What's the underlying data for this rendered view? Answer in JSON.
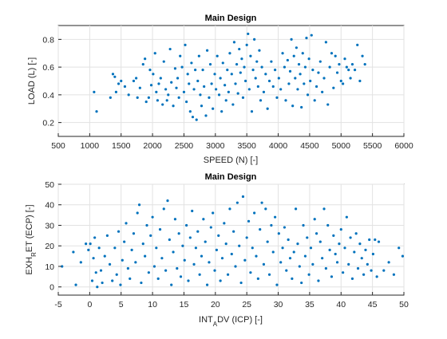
{
  "chart_data": [
    {
      "type": "scatter",
      "title": "Main Design",
      "xlabel": "SPEED (N) [-]",
      "ylabel": "LOAD (L) [-]",
      "xlim": [
        500,
        6000
      ],
      "ylim": [
        0.1,
        0.9
      ],
      "xticks": [
        "500",
        "1000",
        "1500",
        "2000",
        "2500",
        "3000",
        "3500",
        "4000",
        "4500",
        "5000",
        "5500",
        "6000"
      ],
      "yticks": [
        "0.2",
        "0.4",
        "0.6",
        "0.8"
      ],
      "grid": true,
      "color": "#0072BD",
      "points": [
        [
          1070,
          0.42
        ],
        [
          1110,
          0.28
        ],
        [
          1330,
          0.38
        ],
        [
          1370,
          0.55
        ],
        [
          1400,
          0.53
        ],
        [
          1420,
          0.42
        ],
        [
          1460,
          0.48
        ],
        [
          1500,
          0.5
        ],
        [
          1560,
          0.46
        ],
        [
          1620,
          0.4
        ],
        [
          1700,
          0.5
        ],
        [
          1740,
          0.52
        ],
        [
          1760,
          0.38
        ],
        [
          1800,
          0.45
        ],
        [
          1850,
          0.62
        ],
        [
          1880,
          0.66
        ],
        [
          1900,
          0.35
        ],
        [
          1940,
          0.38
        ],
        [
          1960,
          0.58
        ],
        [
          1980,
          0.47
        ],
        [
          2010,
          0.55
        ],
        [
          2040,
          0.7
        ],
        [
          2060,
          0.42
        ],
        [
          2080,
          0.36
        ],
        [
          2100,
          0.48
        ],
        [
          2130,
          0.52
        ],
        [
          2160,
          0.33
        ],
        [
          2180,
          0.64
        ],
        [
          2210,
          0.44
        ],
        [
          2230,
          0.36
        ],
        [
          2250,
          0.4
        ],
        [
          2280,
          0.73
        ],
        [
          2300,
          0.49
        ],
        [
          2330,
          0.32
        ],
        [
          2360,
          0.59
        ],
        [
          2380,
          0.45
        ],
        [
          2400,
          0.52
        ],
        [
          2420,
          0.38
        ],
        [
          2440,
          0.68
        ],
        [
          2470,
          0.6
        ],
        [
          2500,
          0.42
        ],
        [
          2520,
          0.76
        ],
        [
          2540,
          0.35
        ],
        [
          2560,
          0.55
        ],
        [
          2580,
          0.48
        ],
        [
          2600,
          0.28
        ],
        [
          2620,
          0.63
        ],
        [
          2640,
          0.24
        ],
        [
          2660,
          0.44
        ],
        [
          2680,
          0.58
        ],
        [
          2700,
          0.22
        ],
        [
          2720,
          0.5
        ],
        [
          2740,
          0.68
        ],
        [
          2760,
          0.4
        ],
        [
          2780,
          0.32
        ],
        [
          2800,
          0.58
        ],
        [
          2820,
          0.46
        ],
        [
          2850,
          0.25
        ],
        [
          2870,
          0.72
        ],
        [
          2900,
          0.38
        ],
        [
          2920,
          0.62
        ],
        [
          2940,
          0.48
        ],
        [
          2960,
          0.3
        ],
        [
          2990,
          0.55
        ],
        [
          3010,
          0.44
        ],
        [
          3030,
          0.68
        ],
        [
          3060,
          0.4
        ],
        [
          3080,
          0.52
        ],
        [
          3100,
          0.28
        ],
        [
          3120,
          0.63
        ],
        [
          3150,
          0.47
        ],
        [
          3170,
          0.36
        ],
        [
          3190,
          0.58
        ],
        [
          3210,
          0.42
        ],
        [
          3230,
          0.7
        ],
        [
          3260,
          0.55
        ],
        [
          3280,
          0.33
        ],
        [
          3300,
          0.78
        ],
        [
          3320,
          0.48
        ],
        [
          3340,
          0.62
        ],
        [
          3360,
          0.41
        ],
        [
          3380,
          0.73
        ],
        [
          3400,
          0.56
        ],
        [
          3420,
          0.66
        ],
        [
          3440,
          0.38
        ],
        [
          3460,
          0.6
        ],
        [
          3480,
          0.5
        ],
        [
          3500,
          0.76
        ],
        [
          3520,
          0.84
        ],
        [
          3540,
          0.44
        ],
        [
          3560,
          0.68
        ],
        [
          3580,
          0.28
        ],
        [
          3600,
          0.58
        ],
        [
          3620,
          0.8
        ],
        [
          3640,
          0.52
        ],
        [
          3660,
          0.64
        ],
        [
          3680,
          0.46
        ],
        [
          3700,
          0.72
        ],
        [
          3720,
          0.36
        ],
        [
          3740,
          0.6
        ],
        [
          3770,
          0.42
        ],
        [
          3800,
          0.55
        ],
        [
          3830,
          0.3
        ],
        [
          3860,
          0.5
        ],
        [
          3890,
          0.64
        ],
        [
          3920,
          0.46
        ],
        [
          3950,
          0.58
        ],
        [
          3980,
          0.38
        ],
        [
          4010,
          0.52
        ],
        [
          4040,
          0.44
        ],
        [
          4070,
          0.7
        ],
        [
          4100,
          0.6
        ],
        [
          4120,
          0.36
        ],
        [
          4150,
          0.65
        ],
        [
          4170,
          0.48
        ],
        [
          4190,
          0.57
        ],
        [
          4210,
          0.8
        ],
        [
          4230,
          0.32
        ],
        [
          4250,
          0.68
        ],
        [
          4270,
          0.52
        ],
        [
          4290,
          0.74
        ],
        [
          4310,
          0.44
        ],
        [
          4330,
          0.62
        ],
        [
          4350,
          0.55
        ],
        [
          4370,
          0.31
        ],
        [
          4390,
          0.7
        ],
        [
          4410,
          0.48
        ],
        [
          4430,
          0.6
        ],
        [
          4450,
          0.81
        ],
        [
          4470,
          0.4
        ],
        [
          4490,
          0.66
        ],
        [
          4510,
          0.5
        ],
        [
          4530,
          0.83
        ],
        [
          4550,
          0.58
        ],
        [
          4580,
          0.36
        ],
        [
          4610,
          0.46
        ],
        [
          4640,
          0.56
        ],
        [
          4670,
          0.64
        ],
        [
          4700,
          0.42
        ],
        [
          4730,
          0.52
        ],
        [
          4760,
          0.78
        ],
        [
          4790,
          0.33
        ],
        [
          4820,
          0.6
        ],
        [
          4850,
          0.7
        ],
        [
          4880,
          0.45
        ],
        [
          4910,
          0.68
        ],
        [
          4940,
          0.56
        ],
        [
          4970,
          0.62
        ],
        [
          5000,
          0.5
        ],
        [
          5030,
          0.48
        ],
        [
          5060,
          0.66
        ],
        [
          5090,
          0.6
        ],
        [
          5120,
          0.58
        ],
        [
          5150,
          0.52
        ],
        [
          5180,
          0.62
        ],
        [
          5220,
          0.58
        ],
        [
          5260,
          0.76
        ],
        [
          5300,
          0.5
        ],
        [
          5340,
          0.68
        ],
        [
          5380,
          0.62
        ]
      ]
    },
    {
      "type": "scatter",
      "title": "Main Design",
      "xlabel": "INT_ADV (ICP) [-]",
      "ylabel": "EXH_RET (ECP) [-]",
      "xlim": [
        -5,
        50
      ],
      "ylim": [
        -4,
        50
      ],
      "xticks": [
        "-5",
        "0",
        "5",
        "10",
        "15",
        "20",
        "25",
        "30",
        "35",
        "40",
        "45",
        "50"
      ],
      "yticks": [
        "0",
        "10",
        "20",
        "30",
        "40",
        "50"
      ],
      "grid": true,
      "color": "#0072BD",
      "points": [
        [
          -4.4,
          10
        ],
        [
          -2.6,
          17
        ],
        [
          -2.2,
          1
        ],
        [
          -1.4,
          12
        ],
        [
          -0.6,
          21
        ],
        [
          -0.2,
          18
        ],
        [
          0.1,
          21
        ],
        [
          0.4,
          3
        ],
        [
          0.6,
          14
        ],
        [
          0.8,
          24
        ],
        [
          1.0,
          7
        ],
        [
          1.2,
          0
        ],
        [
          1.5,
          19
        ],
        [
          1.8,
          8
        ],
        [
          2.0,
          2
        ],
        [
          2.4,
          15
        ],
        [
          2.8,
          25
        ],
        [
          3.2,
          11
        ],
        [
          3.6,
          3
        ],
        [
          4.0,
          19
        ],
        [
          4.3,
          6
        ],
        [
          4.6,
          27
        ],
        [
          4.9,
          1
        ],
        [
          5.2,
          13
        ],
        [
          5.5,
          22
        ],
        [
          5.8,
          31
        ],
        [
          6.1,
          9
        ],
        [
          6.4,
          4
        ],
        [
          6.7,
          18
        ],
        [
          7.0,
          26
        ],
        [
          7.3,
          12
        ],
        [
          7.6,
          36
        ],
        [
          7.9,
          40
        ],
        [
          8.2,
          2
        ],
        [
          8.5,
          21
        ],
        [
          8.8,
          15
        ],
        [
          9.1,
          30
        ],
        [
          9.4,
          7
        ],
        [
          9.7,
          25
        ],
        [
          10.0,
          34
        ],
        [
          10.3,
          10
        ],
        [
          10.6,
          19
        ],
        [
          10.9,
          4
        ],
        [
          11.2,
          28
        ],
        [
          11.5,
          14
        ],
        [
          11.8,
          38
        ],
        [
          12.1,
          8
        ],
        [
          12.4,
          42
        ],
        [
          12.7,
          23
        ],
        [
          13.0,
          1
        ],
        [
          13.3,
          17
        ],
        [
          13.6,
          33
        ],
        [
          13.9,
          9
        ],
        [
          14.2,
          26
        ],
        [
          14.5,
          5
        ],
        [
          14.8,
          20
        ],
        [
          15.1,
          13
        ],
        [
          15.4,
          30
        ],
        [
          15.7,
          3
        ],
        [
          16.0,
          24
        ],
        [
          16.3,
          37
        ],
        [
          16.6,
          11
        ],
        [
          16.9,
          19
        ],
        [
          17.2,
          27
        ],
        [
          17.5,
          6
        ],
        [
          17.8,
          15
        ],
        [
          18.1,
          33
        ],
        [
          18.4,
          22
        ],
        [
          18.7,
          1
        ],
        [
          19.0,
          12
        ],
        [
          19.3,
          29
        ],
        [
          19.6,
          36
        ],
        [
          19.9,
          8
        ],
        [
          20.2,
          18
        ],
        [
          20.5,
          25
        ],
        [
          20.8,
          3
        ],
        [
          21.1,
          14
        ],
        [
          21.4,
          31
        ],
        [
          21.7,
          21
        ],
        [
          22.0,
          6
        ],
        [
          22.3,
          38
        ],
        [
          22.6,
          16
        ],
        [
          22.9,
          27
        ],
        [
          23.2,
          10
        ],
        [
          23.5,
          41
        ],
        [
          23.8,
          20
        ],
        [
          24.1,
          2
        ],
        [
          24.4,
          44
        ],
        [
          24.7,
          13
        ],
        [
          25.0,
          24
        ],
        [
          25.3,
          32
        ],
        [
          25.6,
          7
        ],
        [
          25.9,
          19
        ],
        [
          26.2,
          36
        ],
        [
          26.5,
          15
        ],
        [
          26.8,
          4
        ],
        [
          27.1,
          28
        ],
        [
          27.4,
          41
        ],
        [
          27.7,
          11
        ],
        [
          28.0,
          38
        ],
        [
          28.3,
          22
        ],
        [
          28.6,
          6
        ],
        [
          28.9,
          30
        ],
        [
          29.2,
          17
        ],
        [
          29.5,
          34
        ],
        [
          29.8,
          1
        ],
        [
          30.1,
          26
        ],
        [
          30.4,
          12
        ],
        [
          30.7,
          19
        ],
        [
          31.0,
          29
        ],
        [
          31.3,
          8
        ],
        [
          31.6,
          23
        ],
        [
          31.9,
          14
        ],
        [
          32.2,
          4
        ],
        [
          32.5,
          17
        ],
        [
          32.8,
          38
        ],
        [
          33.1,
          21
        ],
        [
          33.4,
          10
        ],
        [
          33.7,
          2
        ],
        [
          34.0,
          30
        ],
        [
          34.3,
          15
        ],
        [
          34.6,
          24
        ],
        [
          34.9,
          6
        ],
        [
          35.2,
          19
        ],
        [
          35.5,
          11
        ],
        [
          35.8,
          33
        ],
        [
          36.1,
          26
        ],
        [
          36.4,
          3
        ],
        [
          36.7,
          22
        ],
        [
          37.0,
          14
        ],
        [
          37.3,
          38
        ],
        [
          37.6,
          9
        ],
        [
          37.9,
          30
        ],
        [
          38.2,
          18
        ],
        [
          38.5,
          5
        ],
        [
          38.8,
          25
        ],
        [
          39.1,
          16
        ],
        [
          39.4,
          12
        ],
        [
          39.7,
          21
        ],
        [
          40.0,
          28
        ],
        [
          40.3,
          7
        ],
        [
          40.6,
          19
        ],
        [
          40.9,
          34
        ],
        [
          41.2,
          11
        ],
        [
          41.5,
          24
        ],
        [
          41.8,
          4
        ],
        [
          42.1,
          17
        ],
        [
          42.4,
          26
        ],
        [
          42.7,
          9
        ],
        [
          43.0,
          21
        ],
        [
          43.3,
          14
        ],
        [
          43.6,
          6
        ],
        [
          43.9,
          18
        ],
        [
          44.2,
          11
        ],
        [
          44.5,
          23
        ],
        [
          44.8,
          8
        ],
        [
          45.1,
          16
        ],
        [
          45.4,
          23
        ],
        [
          45.7,
          5
        ],
        [
          46.0,
          22
        ],
        [
          46.8,
          8
        ],
        [
          47.6,
          12
        ],
        [
          48.4,
          6
        ],
        [
          49.2,
          19
        ],
        [
          49.8,
          15
        ]
      ]
    }
  ]
}
